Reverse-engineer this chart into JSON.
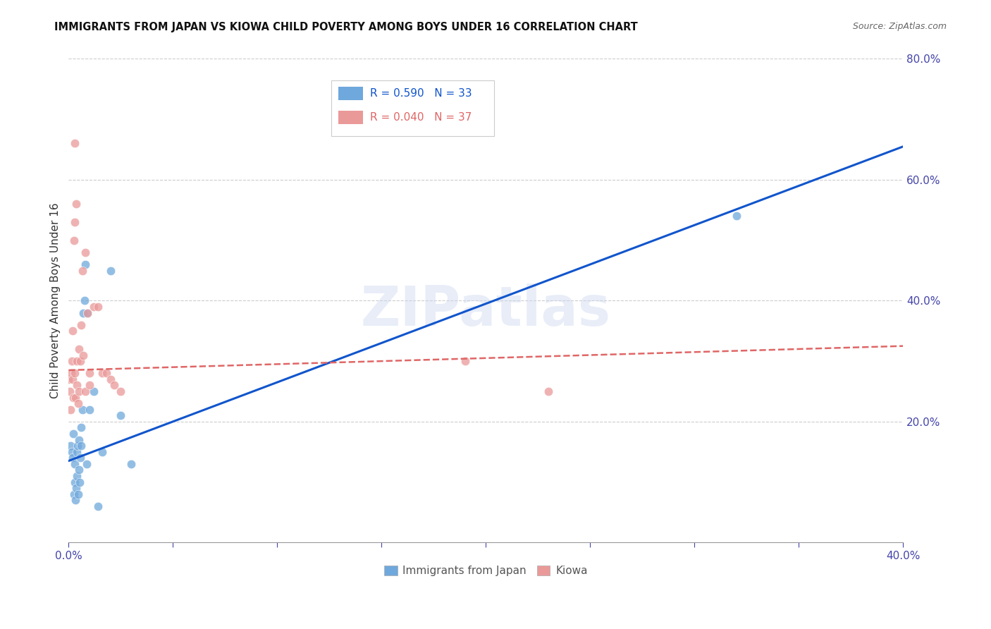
{
  "title": "IMMIGRANTS FROM JAPAN VS KIOWA CHILD POVERTY AMONG BOYS UNDER 16 CORRELATION CHART",
  "source": "Source: ZipAtlas.com",
  "ylabel": "Child Poverty Among Boys Under 16",
  "legend_label1": "Immigrants from Japan",
  "legend_label2": "Kiowa",
  "r1": 0.59,
  "n1": 33,
  "r2": 0.04,
  "n2": 37,
  "color1": "#6fa8dc",
  "color2": "#ea9999",
  "line_color1": "#1155cc",
  "line_color2": "#e06666",
  "xlim": [
    0.0,
    0.4
  ],
  "ylim": [
    0.0,
    0.8
  ],
  "japan_x": [
    0.001,
    0.0015,
    0.002,
    0.0022,
    0.0025,
    0.0028,
    0.003,
    0.0032,
    0.0035,
    0.0038,
    0.004,
    0.0042,
    0.0045,
    0.0048,
    0.005,
    0.0052,
    0.0055,
    0.0058,
    0.006,
    0.0065,
    0.007,
    0.0075,
    0.008,
    0.0085,
    0.009,
    0.01,
    0.012,
    0.014,
    0.016,
    0.02,
    0.025,
    0.03,
    0.32
  ],
  "japan_y": [
    0.16,
    0.15,
    0.14,
    0.18,
    0.08,
    0.1,
    0.13,
    0.07,
    0.09,
    0.15,
    0.11,
    0.16,
    0.08,
    0.12,
    0.17,
    0.1,
    0.14,
    0.16,
    0.19,
    0.22,
    0.38,
    0.4,
    0.46,
    0.13,
    0.38,
    0.22,
    0.25,
    0.06,
    0.15,
    0.45,
    0.21,
    0.13,
    0.54
  ],
  "kiowa_x": [
    0.0,
    0.0005,
    0.001,
    0.0012,
    0.0015,
    0.0018,
    0.002,
    0.0022,
    0.0025,
    0.0028,
    0.003,
    0.0032,
    0.0035,
    0.0038,
    0.004,
    0.0045,
    0.005,
    0.0055,
    0.006,
    0.0065,
    0.007,
    0.008,
    0.009,
    0.01,
    0.012,
    0.014,
    0.016,
    0.018,
    0.02,
    0.022,
    0.025,
    0.19,
    0.23,
    0.003,
    0.005,
    0.008,
    0.01
  ],
  "kiowa_y": [
    0.27,
    0.25,
    0.22,
    0.28,
    0.3,
    0.35,
    0.27,
    0.24,
    0.5,
    0.53,
    0.28,
    0.24,
    0.56,
    0.3,
    0.26,
    0.23,
    0.32,
    0.3,
    0.36,
    0.45,
    0.31,
    0.48,
    0.38,
    0.28,
    0.39,
    0.39,
    0.28,
    0.28,
    0.27,
    0.26,
    0.25,
    0.3,
    0.25,
    0.66,
    0.25,
    0.25,
    0.26
  ]
}
